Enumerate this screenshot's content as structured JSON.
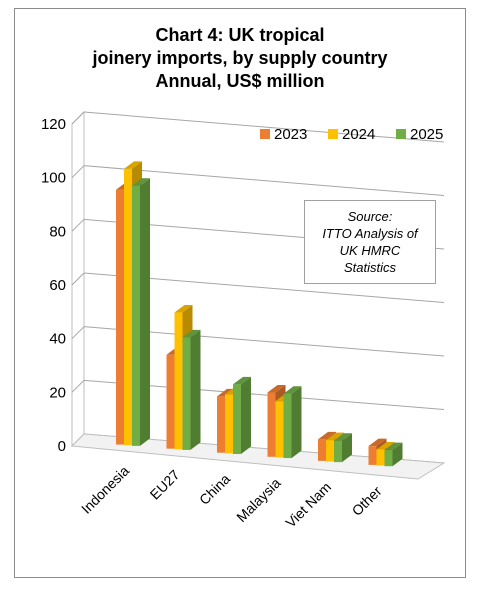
{
  "chart_data": {
    "type": "bar",
    "title": "Chart 4: UK tropical\njoinery imports, by supply country\nAnnual, US$ million",
    "categories": [
      "Indonesia",
      "EU27",
      "China",
      "Malaysia",
      "Viet Nam",
      "Other"
    ],
    "series": [
      {
        "name": "2023",
        "color": "#ed7d31",
        "values": [
          95,
          35,
          21,
          24,
          8,
          7
        ]
      },
      {
        "name": "2024",
        "color": "#ffc000",
        "values": [
          103,
          51,
          22,
          21,
          8,
          6
        ]
      },
      {
        "name": "2025",
        "color": "#70ad47",
        "values": [
          97,
          42,
          26,
          24,
          8,
          6
        ]
      }
    ],
    "yticks": [
      0,
      20,
      40,
      60,
      80,
      100,
      120
    ],
    "ylim": [
      0,
      120
    ],
    "legend_position": "top-right",
    "grid": true,
    "style": "3d-clustered-column"
  },
  "source_note": "Source:\nITTO Analysis of\nUK HMRC\nStatistics"
}
